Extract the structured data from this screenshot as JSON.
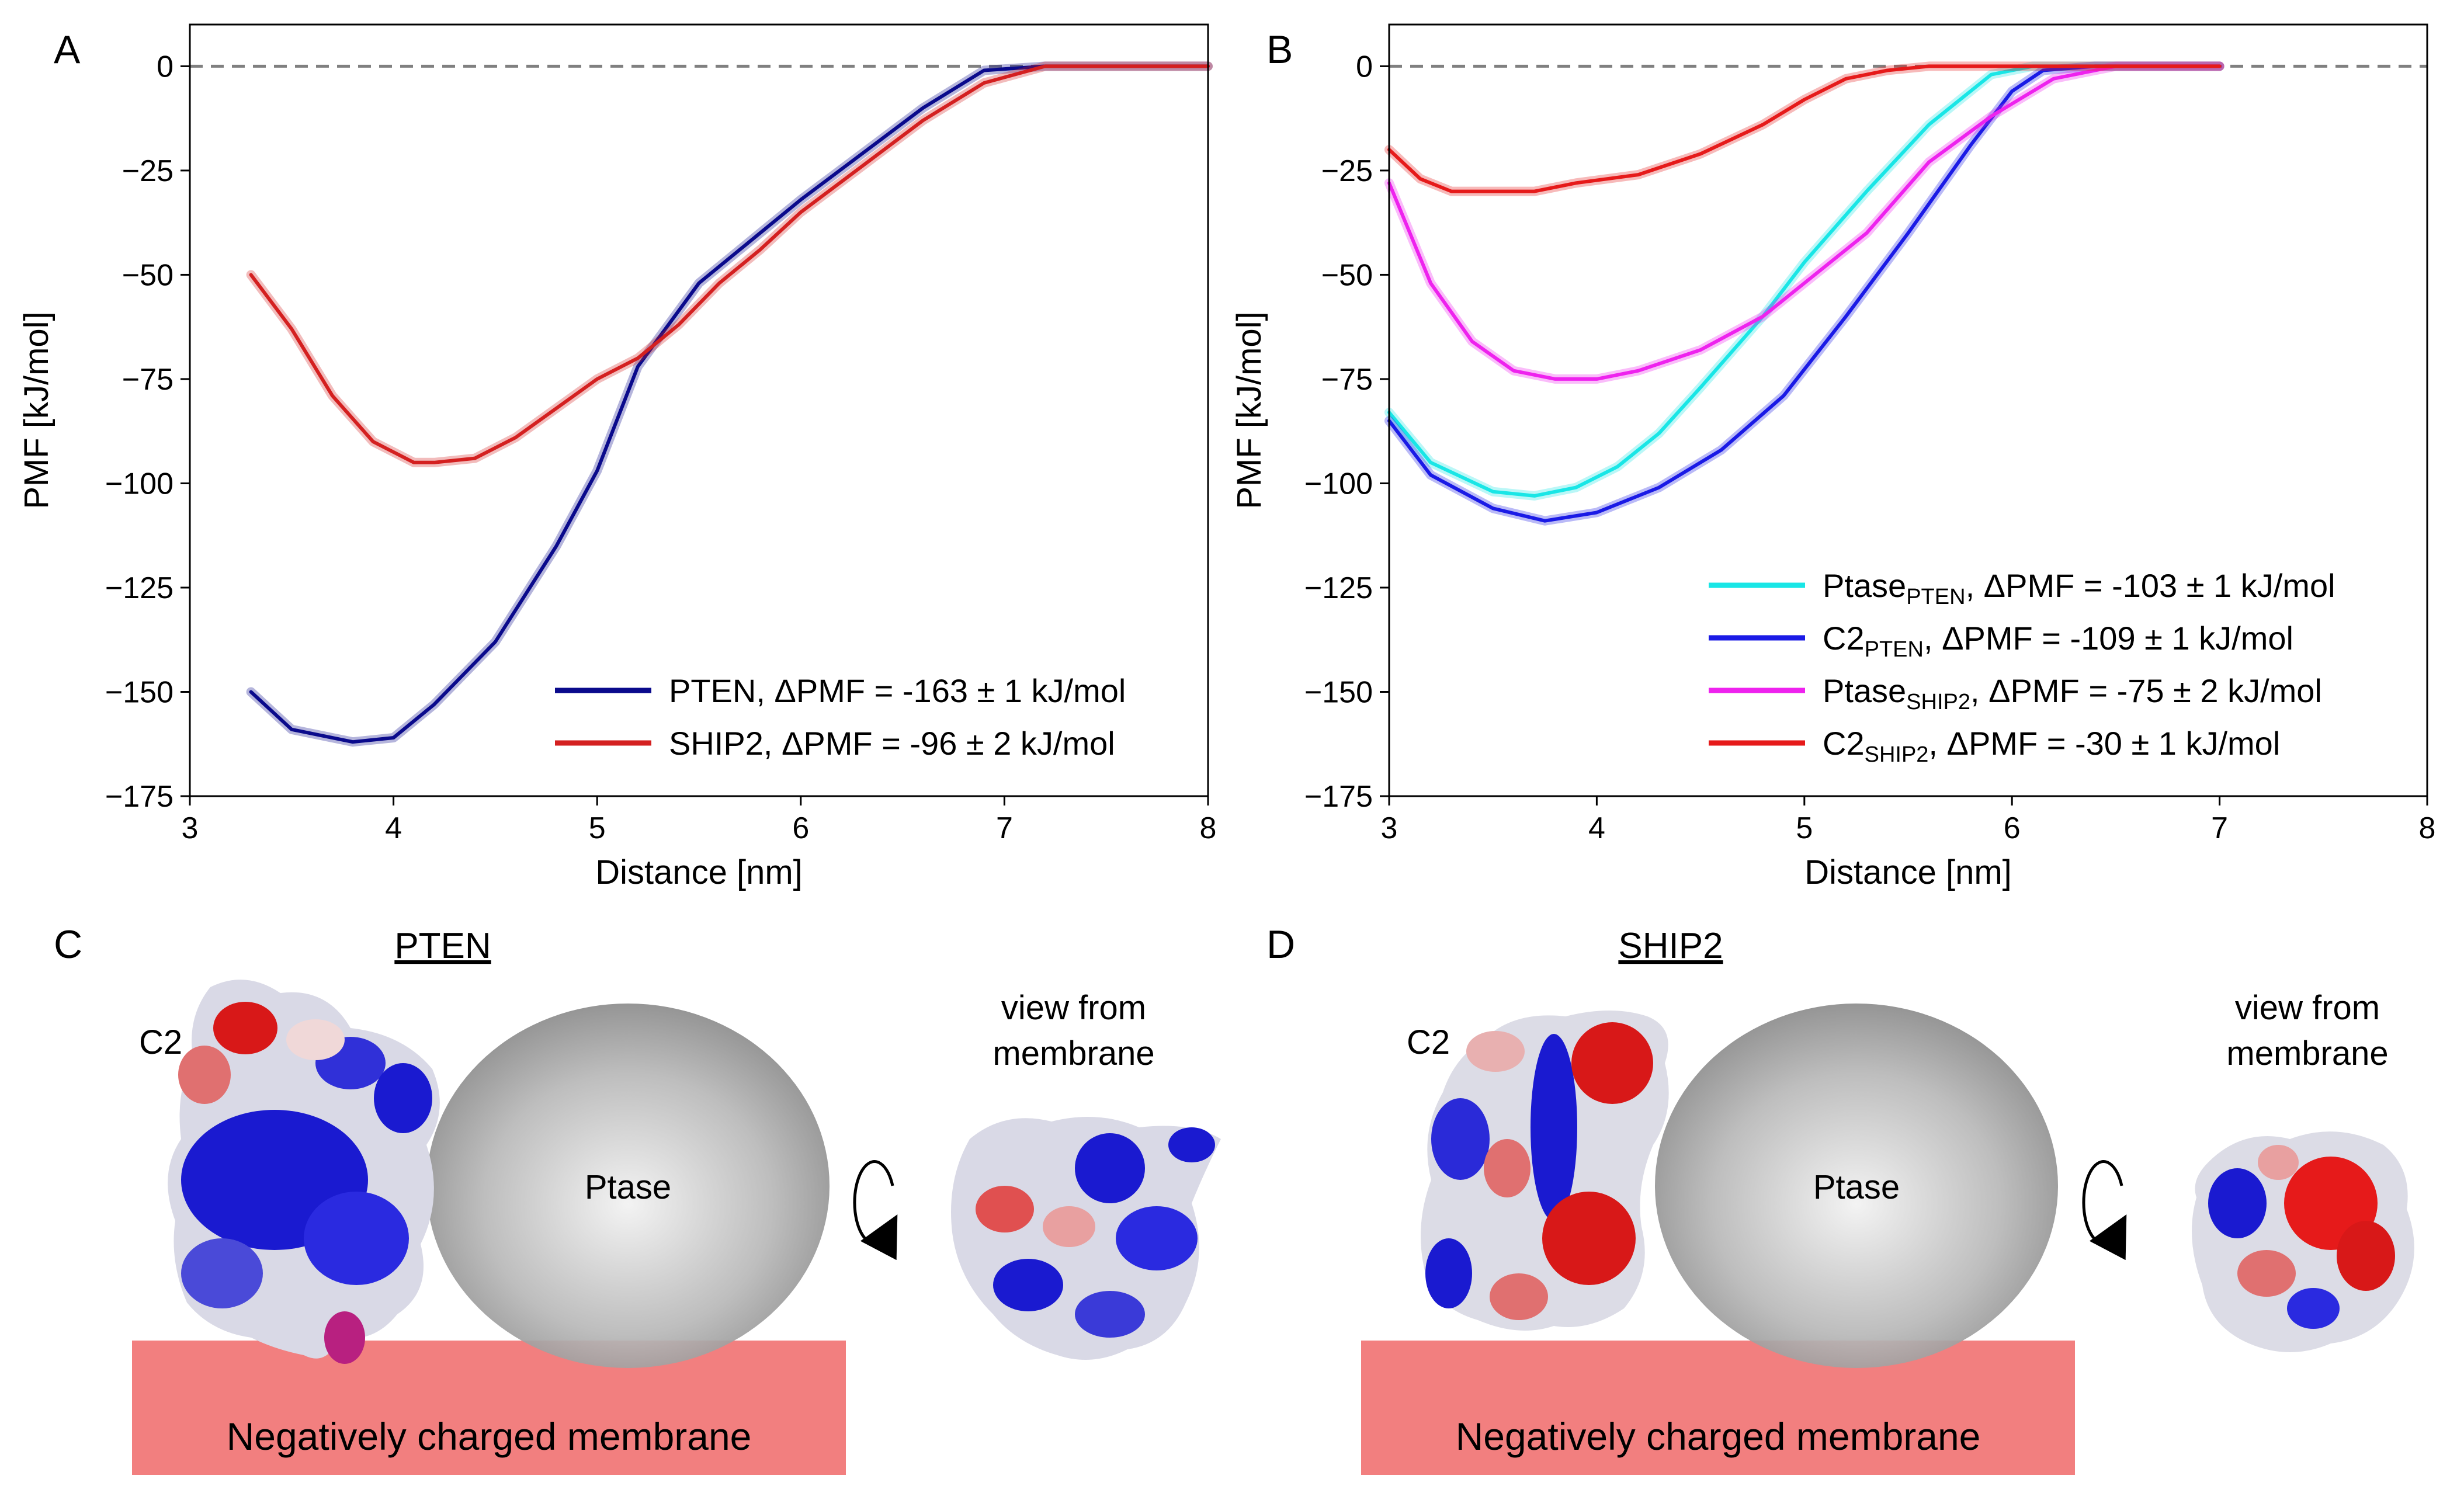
{
  "panels": {
    "A": "A",
    "B": "B",
    "C": "C",
    "D": "D"
  },
  "chart_data": [
    {
      "type": "line",
      "panel": "A",
      "xlabel": "Distance [nm]",
      "ylabel": "PMF [kJ/mol]",
      "xlim": [
        3,
        8
      ],
      "ylim": [
        -175,
        10
      ],
      "xticks": [
        3,
        4,
        5,
        6,
        7,
        8
      ],
      "yticks": [
        0,
        -25,
        -50,
        -75,
        -100,
        -125,
        -150,
        -175
      ],
      "ytick_labels": [
        "0",
        "−25",
        "−50",
        "−75",
        "−100",
        "−125",
        "−150",
        "−175"
      ],
      "reference_line_y": 0,
      "legend_placement": "lower-right",
      "series": [
        {
          "name": "PTEN, ΔPMF = -163 ± 1 kJ/mol",
          "color": "#0a0a8c",
          "x": [
            3.3,
            3.5,
            3.8,
            4.0,
            4.2,
            4.5,
            4.8,
            5.0,
            5.2,
            5.5,
            5.8,
            6.0,
            6.3,
            6.6,
            6.9,
            7.2,
            7.5,
            8.0
          ],
          "y": [
            -150,
            -159,
            -162,
            -161,
            -153,
            -138,
            -115,
            -97,
            -72,
            -52,
            -40,
            -32,
            -21,
            -10,
            -1,
            0,
            0,
            0
          ]
        },
        {
          "name": "SHIP2, ΔPMF = -96 ± 2 kJ/mol",
          "color": "#d42020",
          "x": [
            3.3,
            3.5,
            3.7,
            3.9,
            4.1,
            4.2,
            4.4,
            4.6,
            4.8,
            5.0,
            5.2,
            5.4,
            5.6,
            5.8,
            6.0,
            6.3,
            6.6,
            6.9,
            7.2,
            7.5,
            8.0
          ],
          "y": [
            -50,
            -63,
            -79,
            -90,
            -95,
            -95,
            -94,
            -89,
            -82,
            -75,
            -70,
            -62,
            -52,
            -44,
            -35,
            -24,
            -13,
            -4,
            0,
            0,
            0
          ]
        }
      ]
    },
    {
      "type": "line",
      "panel": "B",
      "xlabel": "Distance [nm]",
      "ylabel": "PMF [kJ/mol]",
      "xlim": [
        3,
        8
      ],
      "ylim": [
        -175,
        10
      ],
      "xticks": [
        3,
        4,
        5,
        6,
        7,
        8
      ],
      "yticks": [
        0,
        -25,
        -50,
        -75,
        -100,
        -125,
        -150,
        -175
      ],
      "ytick_labels": [
        "0",
        "−25",
        "−50",
        "−75",
        "−100",
        "−125",
        "−150",
        "−175"
      ],
      "reference_line_y": 0,
      "legend_placement": "lower-right",
      "series": [
        {
          "name": "Ptase",
          "sub": "PTEN",
          "rest": ", ΔPMF = -103 ± 1 kJ/mol",
          "color": "#19e6e6",
          "x": [
            3.0,
            3.2,
            3.5,
            3.7,
            3.9,
            4.1,
            4.3,
            4.5,
            4.8,
            5.0,
            5.3,
            5.6,
            5.9,
            6.1,
            6.4,
            6.7,
            7.0
          ],
          "y": [
            -83,
            -95,
            -102,
            -103,
            -101,
            -96,
            -88,
            -77,
            -60,
            -47,
            -30,
            -14,
            -2,
            0,
            0,
            0,
            0
          ]
        },
        {
          "name": "C2",
          "sub": "PTEN",
          "rest": ", ΔPMF = -109 ± 1 kJ/mol",
          "color": "#1a1ae6",
          "x": [
            3.0,
            3.2,
            3.5,
            3.75,
            4.0,
            4.3,
            4.6,
            4.9,
            5.2,
            5.5,
            5.8,
            6.0,
            6.15,
            6.4,
            6.7,
            7.0
          ],
          "y": [
            -85,
            -98,
            -106,
            -109,
            -107,
            -101,
            -92,
            -79,
            -60,
            -40,
            -19,
            -6,
            -1,
            0,
            0,
            0
          ]
        },
        {
          "name": "Ptase",
          "sub": "SHIP2",
          "rest": ", ΔPMF = -75 ± 2 kJ/mol",
          "color": "#ee22ee",
          "x": [
            3.0,
            3.2,
            3.4,
            3.6,
            3.8,
            4.0,
            4.2,
            4.5,
            4.8,
            5.0,
            5.3,
            5.6,
            5.9,
            6.2,
            6.5,
            6.8,
            7.0
          ],
          "y": [
            -28,
            -52,
            -66,
            -73,
            -75,
            -75,
            -73,
            -68,
            -60,
            -52,
            -40,
            -23,
            -12,
            -3,
            0,
            0,
            0
          ]
        },
        {
          "name": "C2",
          "sub": "SHIP2",
          "rest": ", ΔPMF = -30 ± 1 kJ/mol",
          "color": "#e61a1a",
          "x": [
            3.0,
            3.15,
            3.3,
            3.5,
            3.7,
            3.9,
            4.2,
            4.5,
            4.8,
            5.0,
            5.2,
            5.4,
            5.6,
            6.0,
            6.5,
            7.0
          ],
          "y": [
            -20,
            -27,
            -30,
            -30,
            -30,
            -28,
            -26,
            -21,
            -14,
            -8,
            -3,
            -1,
            0,
            0,
            0,
            0
          ]
        }
      ]
    }
  ],
  "schematics": [
    {
      "panel": "C",
      "title": "PTEN",
      "domain_label": "C2",
      "ptase_label": "Ptase",
      "view_label_1": "view from",
      "view_label_2": "membrane",
      "membrane_label": "Negatively charged membrane",
      "palette": [
        "#1a1ad0",
        "#e8e8ee",
        "#d81818"
      ]
    },
    {
      "panel": "D",
      "title": "SHIP2",
      "domain_label": "C2",
      "ptase_label": "Ptase",
      "view_label_1": "view from",
      "view_label_2": "membrane",
      "membrane_label": "Negatively charged membrane",
      "palette": [
        "#1a1ad0",
        "#e8e8ee",
        "#d81818"
      ]
    }
  ]
}
